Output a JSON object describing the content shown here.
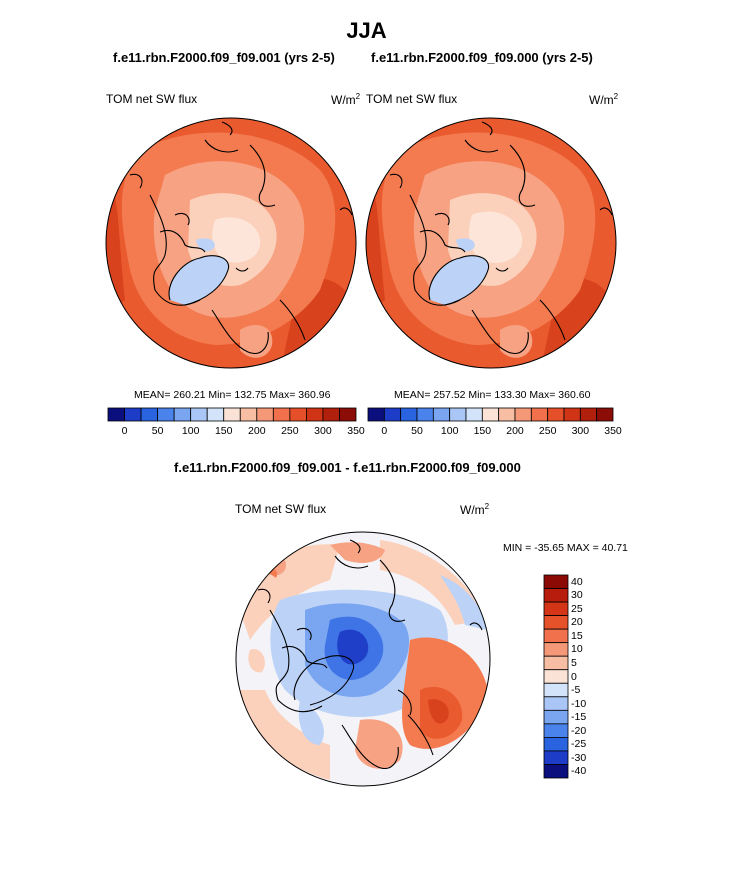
{
  "figure": {
    "title": "JJA",
    "panel_left_case": "f.e11.rbn.F2000.f09_f09.001 (yrs 2-5)",
    "panel_right_case": "f.e11.rbn.F2000.f09_f09.000 (yrs 2-5)",
    "diff_case": "f.e11.rbn.F2000.f09_f09.001 - f.e11.rbn.F2000.f09_f09.000"
  },
  "panels": {
    "left": {
      "variable": "TOM net SW flux",
      "units_base": "W/m",
      "units_exp": "2",
      "stats": "MEAN= 260.21  Min= 132.75  Max= 360.96"
    },
    "right": {
      "variable": "TOM net SW flux",
      "units_base": "W/m",
      "units_exp": "2",
      "stats": "MEAN= 257.52  Min= 133.30  Max= 360.60"
    },
    "diff": {
      "variable": "TOM net SW flux",
      "units_base": "W/m",
      "units_exp": "2",
      "stats": "MIN = -35.65 MAX =  40.71"
    }
  },
  "colorbar_abs": {
    "tick_labels": [
      "0",
      "50",
      "100",
      "150",
      "200",
      "250",
      "300",
      "350"
    ],
    "colors": [
      "#0b0f7d",
      "#1d3dc9",
      "#2a63e0",
      "#4a83ec",
      "#7aa5f1",
      "#a9c6f6",
      "#d3e4fa",
      "#fbe2d6",
      "#f8bea3",
      "#f59877",
      "#f0714c",
      "#e5502a",
      "#cf3416",
      "#b0200d",
      "#8c0d07"
    ]
  },
  "colorbar_diff": {
    "tick_labels": [
      "40",
      "30",
      "25",
      "20",
      "15",
      "10",
      "5",
      "0",
      "-5",
      "-10",
      "-15",
      "-20",
      "-25",
      "-30",
      "-40"
    ],
    "colors": [
      "#8c0a06",
      "#b81c0c",
      "#d33516",
      "#e6522a",
      "#f0714c",
      "#f59877",
      "#f8bea3",
      "#fbe2d6",
      "#d3e4fa",
      "#a9c6f6",
      "#7aa5f1",
      "#4a83ec",
      "#2a63e0",
      "#1d3dc9",
      "#0b0f7d"
    ]
  },
  "map_colors": {
    "deep_red": "#d8431d",
    "red": "#ea5a2f",
    "orange": "#f37b4f",
    "salmon": "#f7a283",
    "light": "#fbd1bc",
    "pale": "#fde6d9",
    "ice_blue": "#bcd3f7",
    "mid_blue": "#7aa5f1",
    "blue": "#3e74e6",
    "dark_blue": "#1f3fc8",
    "near_white": "#f3f3f8"
  }
}
